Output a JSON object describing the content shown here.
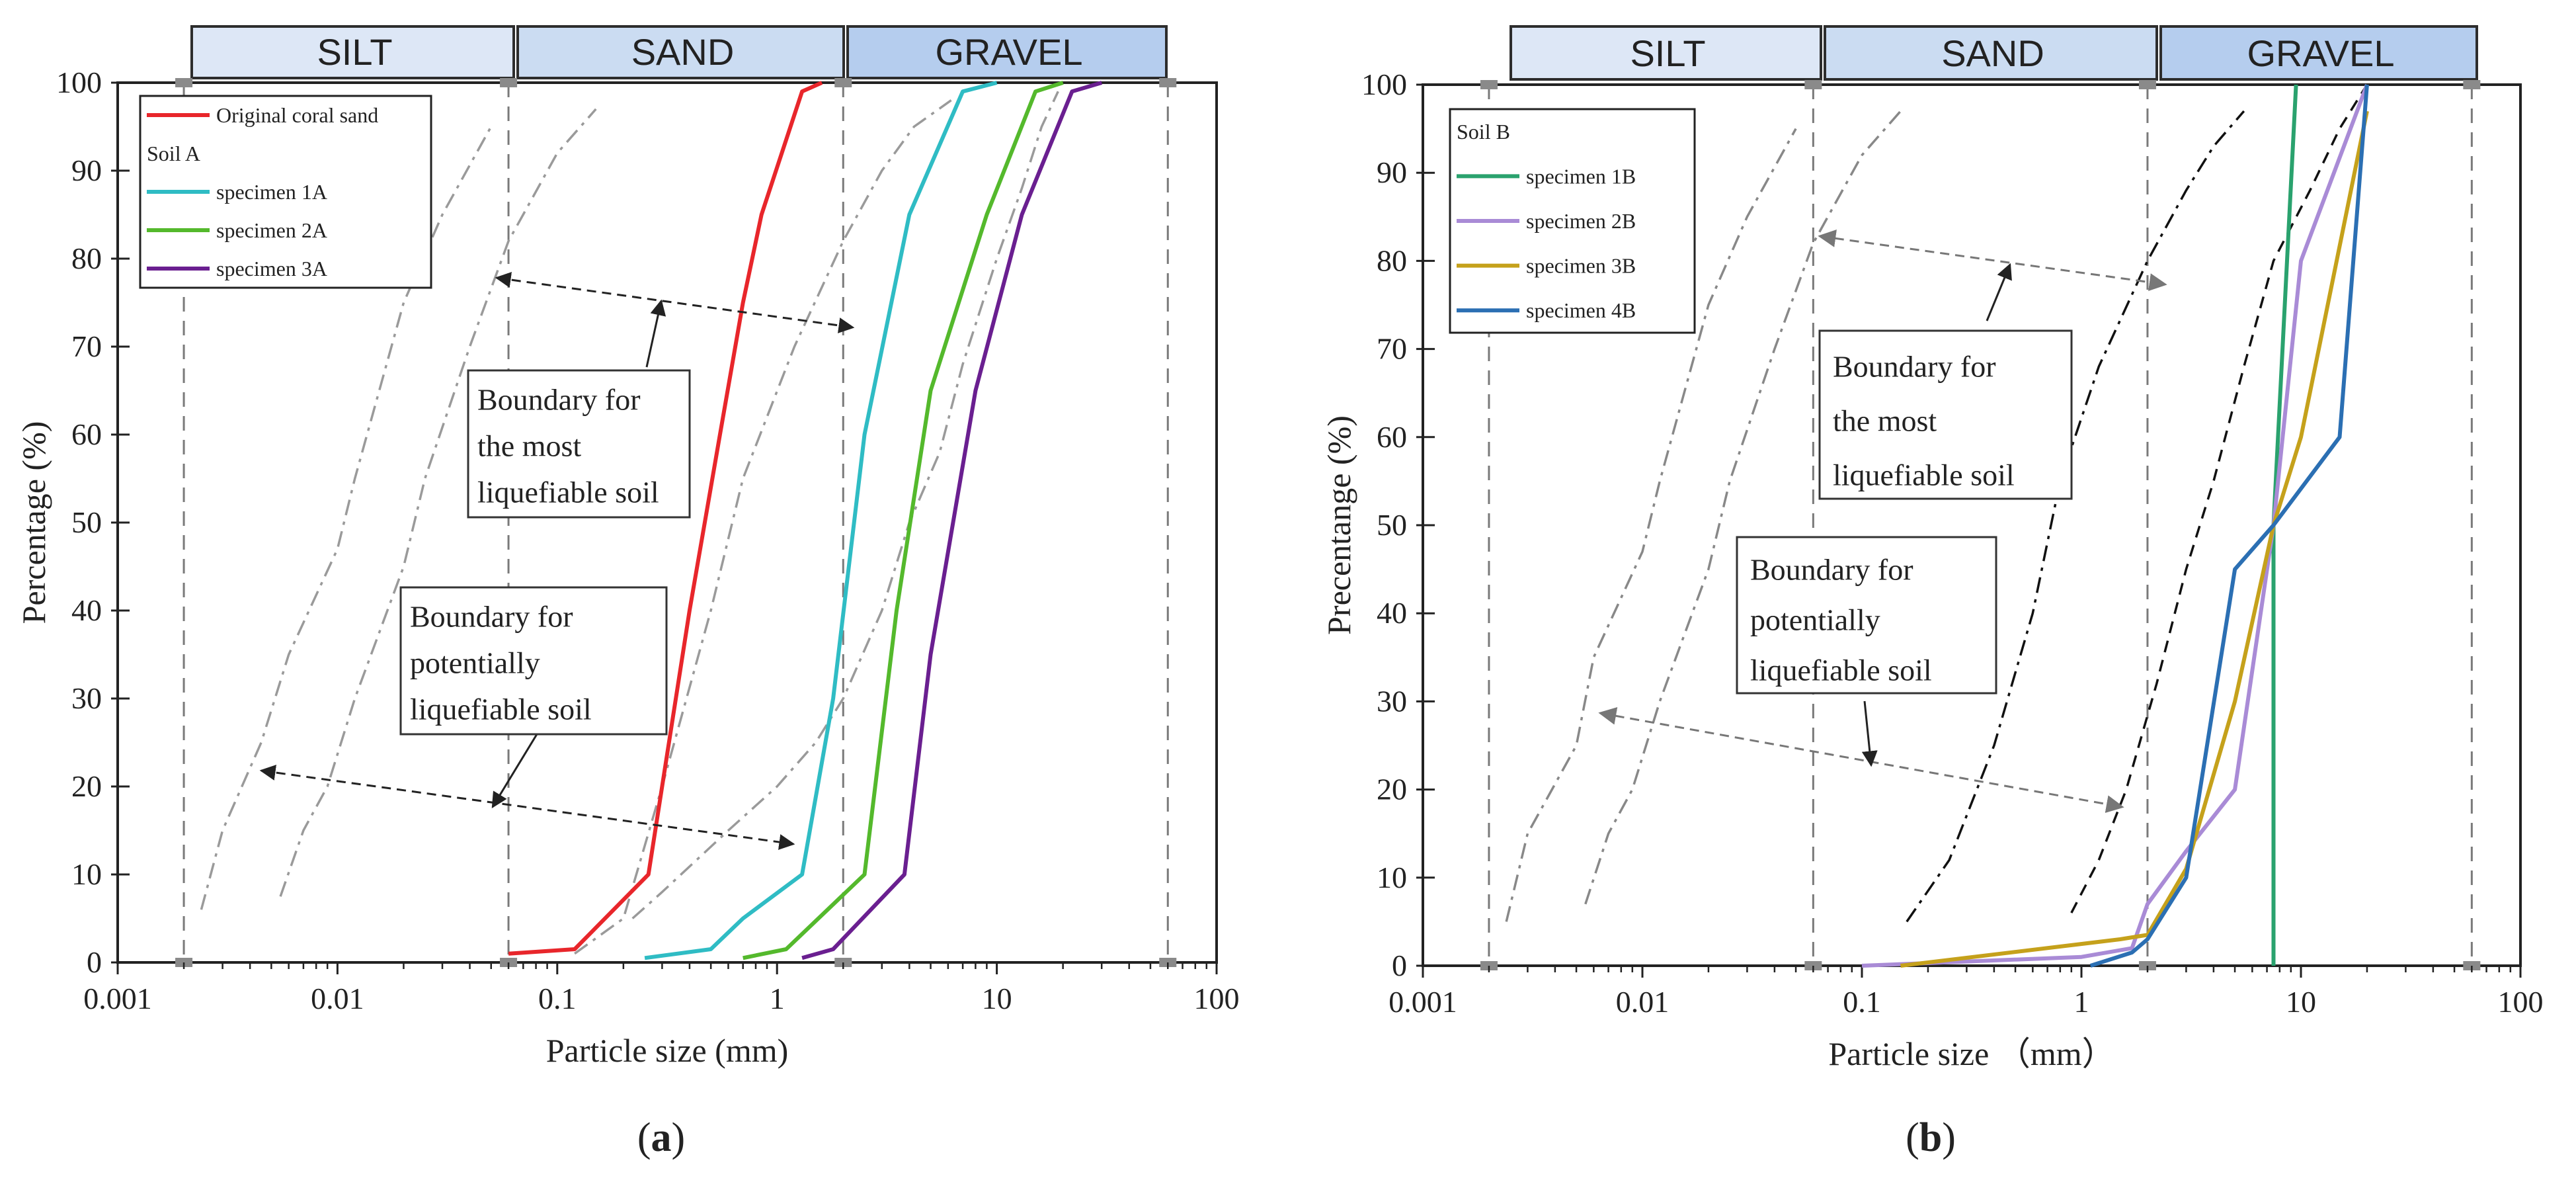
{
  "chart_data": [
    {
      "panel": "(a)",
      "panel_label": {
        "open": "(",
        "letter": "a",
        "close": ")"
      },
      "type": "line",
      "xscale": "log",
      "xlim": [
        0.001,
        100
      ],
      "ylim": [
        0,
        100
      ],
      "xlabel": "Particle size (mm)",
      "ylabel": "Percentage (%)",
      "xticks": [
        "0.001",
        "0.01",
        "0.1",
        "1",
        "10",
        "100"
      ],
      "yticks": [
        "0",
        "10",
        "20",
        "30",
        "40",
        "50",
        "60",
        "70",
        "80",
        "90",
        "100"
      ],
      "categories": [
        {
          "label": "SILT",
          "range": [
            0.002,
            0.06
          ],
          "color": "#dde7f6"
        },
        {
          "label": "SAND",
          "range": [
            0.06,
            2
          ],
          "color": "#cbdcf2"
        },
        {
          "label": "GRAVEL",
          "range": [
            2,
            60
          ],
          "color": "#b5cdee"
        }
      ],
      "legend": {
        "position": "top-left",
        "group_title": "Soil A",
        "entries": [
          {
            "label": "Original coral sand",
            "series": 0
          },
          {
            "label": "specimen 1A",
            "series": 1
          },
          {
            "label": "specimen 2A",
            "series": 2
          },
          {
            "label": "specimen 3A",
            "series": 3
          }
        ]
      },
      "series": [
        {
          "name": "Original coral sand",
          "color": "#e8262b",
          "points": [
            [
              0.06,
              1
            ],
            [
              0.12,
              1.5
            ],
            [
              0.26,
              10
            ],
            [
              0.3,
              20
            ],
            [
              0.4,
              40
            ],
            [
              0.55,
              60
            ],
            [
              0.7,
              75
            ],
            [
              0.85,
              85
            ],
            [
              1.3,
              99
            ],
            [
              1.6,
              100
            ]
          ]
        },
        {
          "name": "specimen 1A",
          "color": "#2fbcc4",
          "points": [
            [
              0.25,
              0.5
            ],
            [
              0.5,
              1.5
            ],
            [
              0.7,
              5
            ],
            [
              1.3,
              10
            ],
            [
              1.8,
              30
            ],
            [
              2.5,
              60
            ],
            [
              4,
              85
            ],
            [
              7,
              99
            ],
            [
              10,
              100
            ]
          ]
        },
        {
          "name": "specimen 2A",
          "color": "#54b92c",
          "points": [
            [
              0.7,
              0.5
            ],
            [
              1.1,
              1.5
            ],
            [
              2.5,
              10
            ],
            [
              3.5,
              40
            ],
            [
              5,
              65
            ],
            [
              9,
              85
            ],
            [
              15,
              99
            ],
            [
              20,
              100
            ]
          ]
        },
        {
          "name": "specimen 3A",
          "color": "#6a1f90",
          "points": [
            [
              1.3,
              0.5
            ],
            [
              1.8,
              1.5
            ],
            [
              3.8,
              10
            ],
            [
              5,
              35
            ],
            [
              8,
              65
            ],
            [
              13,
              85
            ],
            [
              22,
              99
            ],
            [
              30,
              100
            ]
          ]
        }
      ],
      "boundaries": [
        {
          "name": "finest potentially liquefiable",
          "style": "dash-dot",
          "points": [
            [
              0.0024,
              6
            ],
            [
              0.003,
              15
            ],
            [
              0.0045,
              25
            ],
            [
              0.006,
              35
            ],
            [
              0.01,
              47
            ],
            [
              0.012,
              55
            ],
            [
              0.02,
              75
            ],
            [
              0.03,
              85
            ],
            [
              0.05,
              95
            ]
          ]
        },
        {
          "name": "finest most liquefiable",
          "style": "dash-dot",
          "points": [
            [
              0.0055,
              7.5
            ],
            [
              0.007,
              15
            ],
            [
              0.009,
              20
            ],
            [
              0.012,
              30
            ],
            [
              0.02,
              45
            ],
            [
              0.025,
              55
            ],
            [
              0.04,
              70
            ],
            [
              0.06,
              82
            ],
            [
              0.1,
              92
            ],
            [
              0.15,
              97
            ]
          ]
        },
        {
          "name": "coarsest most liquefiable",
          "style": "dash-dot",
          "points": [
            [
              0.12,
              1
            ],
            [
              0.2,
              5
            ],
            [
              0.3,
              20
            ],
            [
              0.5,
              40
            ],
            [
              0.7,
              55
            ],
            [
              1.2,
              70
            ],
            [
              2,
              82
            ],
            [
              3,
              90
            ],
            [
              4.2,
              95
            ],
            [
              6.2,
              98
            ]
          ]
        },
        {
          "name": "coarsest potentially liquefiable",
          "style": "dash-dot",
          "points": [
            [
              0.22,
              5
            ],
            [
              0.3,
              8
            ],
            [
              0.6,
              15
            ],
            [
              1,
              20
            ],
            [
              1.5,
              25
            ],
            [
              2,
              30
            ],
            [
              3,
              40
            ],
            [
              4,
              50
            ],
            [
              5.5,
              58
            ],
            [
              7,
              68
            ],
            [
              10,
              80
            ],
            [
              13,
              88
            ],
            [
              16,
              95
            ],
            [
              19,
              99
            ]
          ]
        }
      ],
      "annotations": [
        {
          "lines": [
            "Boundary for",
            "the most",
            "liquefiable soil"
          ]
        },
        {
          "lines": [
            "Boundary for",
            "potentially",
            "liquefiable soil"
          ]
        }
      ]
    },
    {
      "panel": "(b)",
      "panel_label": {
        "open": "(",
        "letter": "b",
        "close": ")"
      },
      "type": "line",
      "xscale": "log",
      "xlim": [
        0.001,
        100
      ],
      "ylim": [
        0,
        100
      ],
      "xlabel": "Particle size （mm）",
      "ylabel": "Precentange (%)",
      "xticks": [
        "0.001",
        "0.01",
        "0.1",
        "1",
        "10",
        "100"
      ],
      "yticks": [
        "0",
        "10",
        "20",
        "30",
        "40",
        "50",
        "60",
        "70",
        "80",
        "90",
        "100"
      ],
      "categories": [
        {
          "label": "SILT",
          "range": [
            0.002,
            0.06
          ],
          "color": "#dde7f6"
        },
        {
          "label": "SAND",
          "range": [
            0.06,
            2
          ],
          "color": "#cbdcf2"
        },
        {
          "label": "GRAVEL",
          "range": [
            2,
            60
          ],
          "color": "#b5cdee"
        }
      ],
      "legend": {
        "position": "top-left",
        "group_title": "Soil B",
        "entries": [
          {
            "label": "specimen 1B",
            "series": 0
          },
          {
            "label": "specimen 2B",
            "series": 1
          },
          {
            "label": "specimen 3B",
            "series": 2
          },
          {
            "label": "specimen 4B",
            "series": 3
          }
        ]
      },
      "series": [
        {
          "name": "specimen 1B",
          "color": "#2aa26e",
          "points": [
            [
              7.5,
              0
            ],
            [
              7.5,
              50
            ],
            [
              9.5,
              100
            ]
          ]
        },
        {
          "name": "specimen 2B",
          "color": "#a98bd6",
          "points": [
            [
              0.1,
              0
            ],
            [
              1,
              1
            ],
            [
              1.7,
              2
            ],
            [
              2,
              7
            ],
            [
              3,
              13
            ],
            [
              5,
              20
            ],
            [
              7.5,
              50
            ],
            [
              10,
              80
            ],
            [
              20,
              100
            ]
          ]
        },
        {
          "name": "specimen 3B",
          "color": "#c5a11b",
          "points": [
            [
              0.15,
              0
            ],
            [
              1.5,
              3
            ],
            [
              2,
              3.5
            ],
            [
              3,
              11
            ],
            [
              5,
              30
            ],
            [
              7.5,
              50
            ],
            [
              10,
              60
            ],
            [
              20,
              97
            ]
          ]
        },
        {
          "name": "specimen 4B",
          "color": "#2b6fb3",
          "points": [
            [
              1.1,
              0
            ],
            [
              1.7,
              1.5
            ],
            [
              2,
              3
            ],
            [
              3,
              10
            ],
            [
              5,
              45
            ],
            [
              7.5,
              50
            ],
            [
              15,
              60
            ],
            [
              20,
              100
            ]
          ]
        }
      ],
      "boundaries": [
        {
          "name": "finest potentially liquefiable",
          "color": "#888888",
          "style": "dash-dot",
          "points": [
            [
              0.0024,
              5
            ],
            [
              0.003,
              15
            ],
            [
              0.005,
              25
            ],
            [
              0.006,
              35
            ],
            [
              0.01,
              47
            ],
            [
              0.012,
              55
            ],
            [
              0.02,
              75
            ],
            [
              0.03,
              85
            ],
            [
              0.05,
              95
            ]
          ]
        },
        {
          "name": "finest most liquefiable",
          "color": "#888888",
          "style": "dash-dot",
          "points": [
            [
              0.0055,
              7
            ],
            [
              0.007,
              15
            ],
            [
              0.009,
              20
            ],
            [
              0.012,
              30
            ],
            [
              0.02,
              45
            ],
            [
              0.025,
              55
            ],
            [
              0.04,
              70
            ],
            [
              0.06,
              82
            ],
            [
              0.1,
              92
            ],
            [
              0.15,
              97
            ]
          ]
        },
        {
          "name": "coarsest most liquefiable",
          "color": "#111111",
          "style": "dash-dot",
          "points": [
            [
              0.16,
              5
            ],
            [
              0.25,
              12
            ],
            [
              0.4,
              25
            ],
            [
              0.6,
              40
            ],
            [
              0.8,
              55
            ],
            [
              1.2,
              68
            ],
            [
              2,
              80
            ],
            [
              3,
              88
            ],
            [
              4,
              93
            ],
            [
              5.5,
              97
            ]
          ]
        },
        {
          "name": "coarsest potentially liquefiable",
          "color": "#111111",
          "style": "dashed",
          "points": [
            [
              0.9,
              6
            ],
            [
              1.2,
              12
            ],
            [
              1.6,
              20
            ],
            [
              2.2,
              32
            ],
            [
              3,
              45
            ],
            [
              4,
              55
            ],
            [
              5.5,
              68
            ],
            [
              7.5,
              80
            ],
            [
              11,
              88
            ],
            [
              15,
              95
            ],
            [
              20,
              100
            ]
          ]
        }
      ],
      "annotations": [
        {
          "lines": [
            "Boundary for",
            "the most",
            "liquefiable soil"
          ]
        },
        {
          "lines": [
            "Boundary for",
            "potentially",
            "liquefiable soil"
          ]
        }
      ]
    }
  ]
}
